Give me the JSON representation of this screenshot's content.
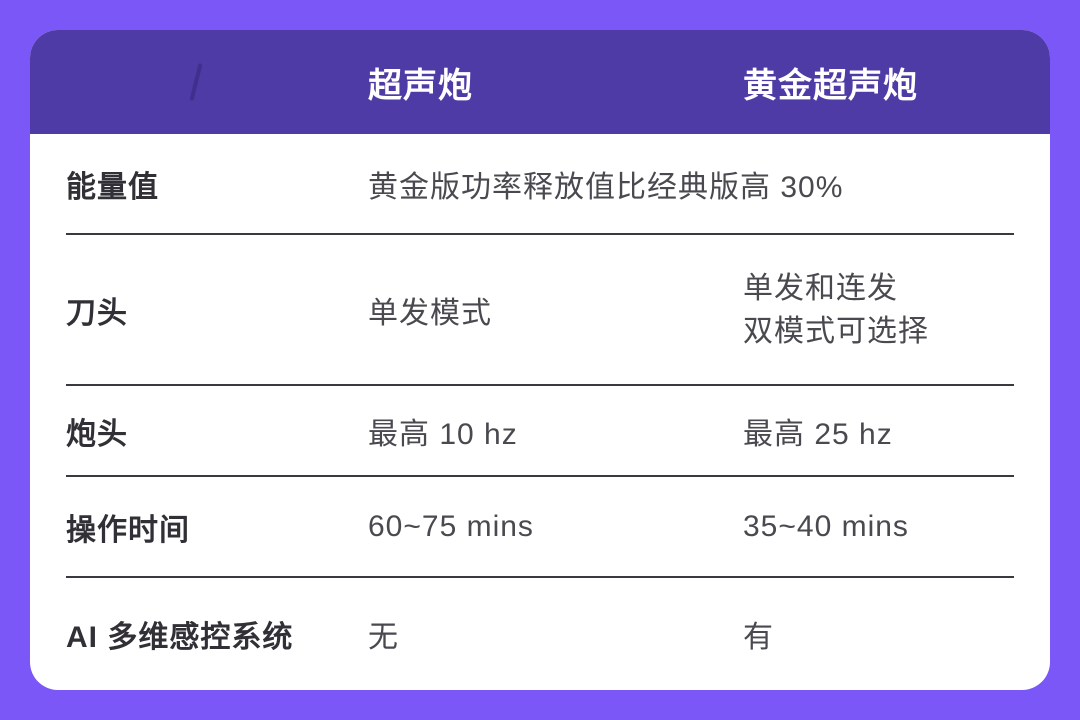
{
  "colors": {
    "page_bg": "#7A57F6",
    "header_bg": "#4F3BA6",
    "card_bg": "#FFFFFF",
    "header_text": "#FFFFFF",
    "label_text": "#313036",
    "value_text": "#4A494F",
    "separator": "#3A393F"
  },
  "chart_data": {
    "type": "table",
    "columns": [
      "",
      "超声炮",
      "黄金超声炮"
    ],
    "rows": [
      [
        "能量值",
        "黄金版功率释放值比经典版高 30%",
        ""
      ],
      [
        "刀头",
        "单发模式",
        "单发和连发 双模式可选择"
      ],
      [
        "炮头",
        "最高 10 hz",
        "最高 25 hz"
      ],
      [
        "操作时间",
        "60~75 mins",
        "35~40 mins"
      ],
      [
        "AI 多维感控系统",
        "无",
        "有"
      ]
    ],
    "notes": "能量值 row value spans both product columns; 黄金超声炮 刀头 value wraps to two lines"
  },
  "display": {
    "row2_gold_line1": "单发和连发",
    "row2_gold_line2": "双模式可选择"
  }
}
